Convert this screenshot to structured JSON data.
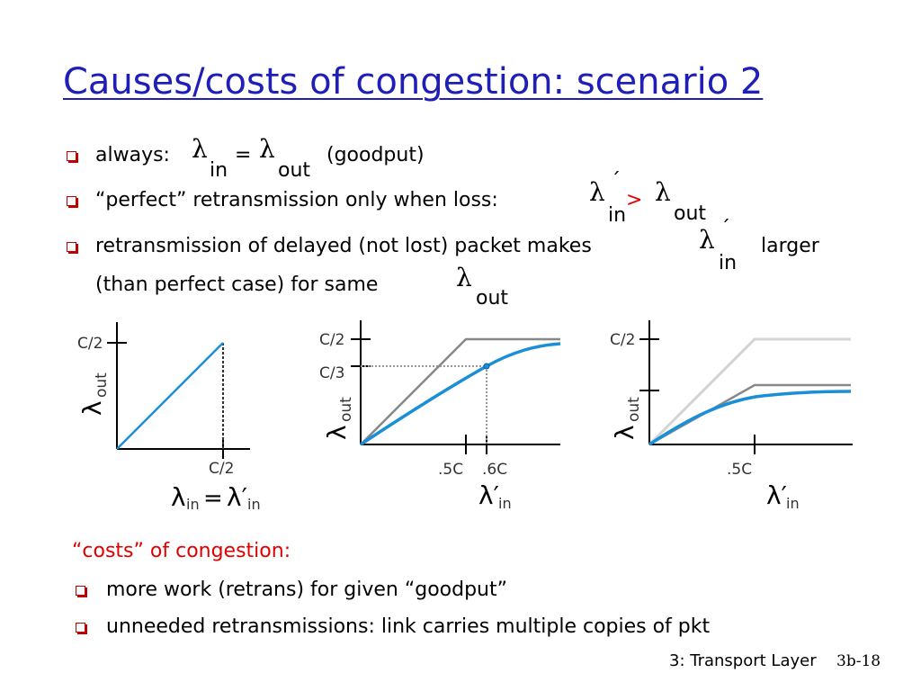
{
  "title": "Causes/costs of congestion: scenario 2",
  "bullets": [
    {
      "text": "always:",
      "eq": "=",
      "suffix": "(goodput)"
    },
    {
      "text": "“perfect” retransmission only when loss:",
      "op": ">",
      "prime": "´"
    },
    {
      "text": "retransmission of delayed (not lost) packet makes",
      "after": "larger",
      "line2": "(than perfect case) for same",
      "prime": "´"
    }
  ],
  "symbols": {
    "lambda": "λ",
    "sub_in": "in",
    "sub_out": "out"
  },
  "graphs": {
    "g1": {
      "y_tick": "C/2",
      "x_tick": "C/2",
      "y_label": "λ",
      "y_label_sub": "out",
      "x_label_a": "λ",
      "x_label_a_sub": "in",
      "x_label_eq": "=",
      "x_label_b": "λ′",
      "x_label_b_sub": "in"
    },
    "g2": {
      "y_ticks": [
        "C/2",
        "C/3"
      ],
      "x_ticks": [
        ".5C",
        ".6C"
      ],
      "y_label": "λ",
      "y_label_sub": "out",
      "x_label": "λ′",
      "x_label_sub": "in"
    },
    "g3": {
      "y_tick": "C/2",
      "x_tick": ".5C",
      "y_label": "λ",
      "y_label_sub": "out",
      "x_label": "λ′",
      "x_label_sub": "in"
    }
  },
  "costs": {
    "heading": "“costs” of congestion:",
    "items": [
      "more work (retrans) for given “goodput”",
      "unneeded retransmissions: link carries multiple copies of pkt"
    ]
  },
  "footer": {
    "section": "3: Transport Layer",
    "page": "3b-18"
  },
  "colors": {
    "title": "#1f1fb8",
    "bullet": "#c00000",
    "accent_red": "#e00000",
    "curve_blue": "#1a8fd8",
    "curve_gray": "#888888",
    "curve_lightgray": "#d4d4d4"
  }
}
